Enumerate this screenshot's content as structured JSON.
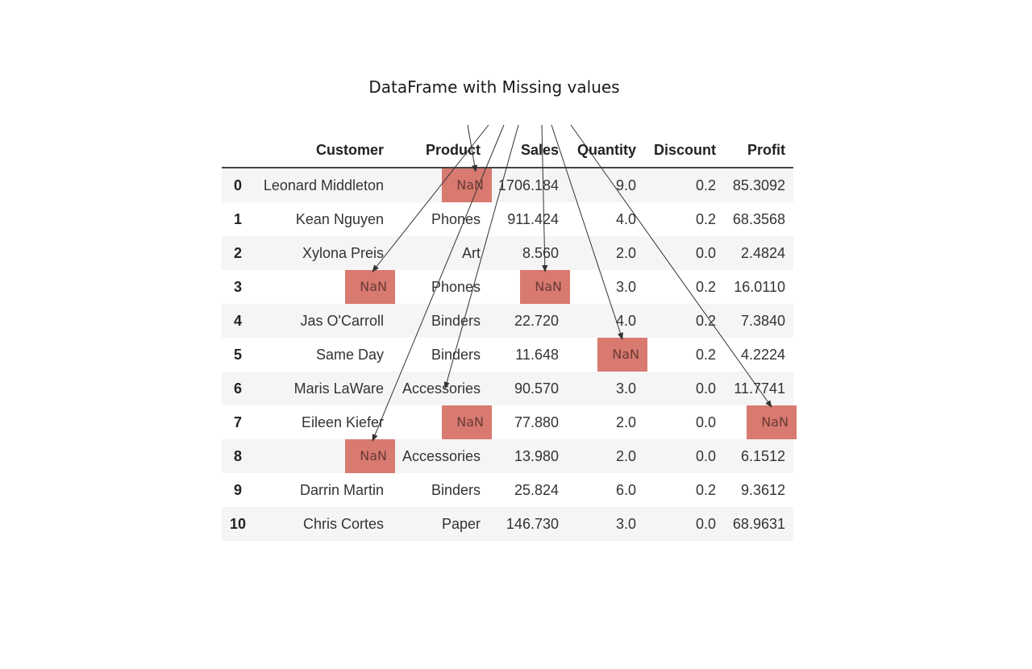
{
  "title": "DataFrame with Missing values",
  "table": {
    "columns": [
      "",
      "Customer",
      "Product",
      "Sales",
      "Quantity",
      "Discount",
      "Profit"
    ],
    "rows": [
      [
        "0",
        "Leonard Middleton",
        "NaN",
        "1706.184",
        "9.0",
        "0.2",
        "85.3092"
      ],
      [
        "1",
        "Kean Nguyen",
        "Phones",
        "911.424",
        "4.0",
        "0.2",
        "68.3568"
      ],
      [
        "2",
        "Xylona Preis",
        "Art",
        "8.560",
        "2.0",
        "0.0",
        "2.4824"
      ],
      [
        "3",
        "NaN",
        "Phones",
        "NaN",
        "3.0",
        "0.2",
        "16.0110"
      ],
      [
        "4",
        "Jas O'Carroll",
        "Binders",
        "22.720",
        "4.0",
        "0.2",
        "7.3840"
      ],
      [
        "5",
        "Same Day",
        "Binders",
        "11.648",
        "NaN",
        "0.2",
        "4.2224"
      ],
      [
        "6",
        "Maris LaWare",
        "Accessories",
        "90.570",
        "3.0",
        "0.0",
        "11.7741"
      ],
      [
        "7",
        "Eileen Kiefer",
        "NaN",
        "77.880",
        "2.0",
        "0.0",
        "NaN"
      ],
      [
        "8",
        "NaN",
        "Accessories",
        "13.980",
        "2.0",
        "0.0",
        "6.1512"
      ],
      [
        "9",
        "Darrin Martin",
        "Binders",
        "25.824",
        "6.0",
        "0.2",
        "9.3612"
      ],
      [
        "10",
        "Chris Cortes",
        "Paper",
        "146.730",
        "3.0",
        "0.0",
        "68.9631"
      ]
    ]
  },
  "colors": {
    "missing_highlight": "#d87a70",
    "arrow": "#333333"
  }
}
